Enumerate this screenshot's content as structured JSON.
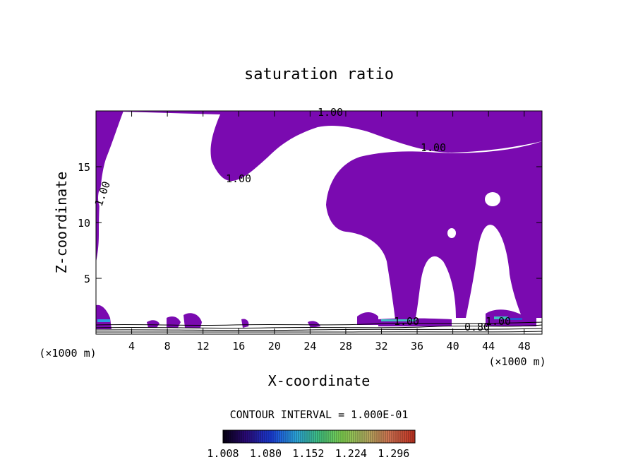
{
  "chart_data": {
    "type": "contour",
    "title": "saturation ratio",
    "xlabel": "X-coordinate",
    "ylabel": "Z-coordinate",
    "x_unit_label": "(×1000 m)",
    "y_unit_label": "(×1000 m)",
    "xlim": [
      0,
      50
    ],
    "ylim": [
      0,
      20
    ],
    "x_ticks": [
      4,
      8,
      12,
      16,
      20,
      24,
      28,
      32,
      36,
      40,
      44,
      48
    ],
    "y_ticks": [
      5,
      10,
      15
    ],
    "contour_interval_text": "CONTOUR INTERVAL = 1.000E-01",
    "contour_labels": [
      "1.00",
      "1.00",
      "1.00",
      "1.00",
      "1.00",
      "0.80",
      "1.00"
    ],
    "colorbar": {
      "tick_labels": [
        "1.008",
        "1.080",
        "1.152",
        "1.224",
        "1.296"
      ],
      "range": [
        1.008,
        1.332
      ],
      "colors": [
        "#000000",
        "#2b0a78",
        "#1a3cd8",
        "#2aa0e0",
        "#40c080",
        "#80d050",
        "#c0b050",
        "#d07050",
        "#d05040",
        "#c03020"
      ]
    },
    "fill_color": "#7a0ab0"
  }
}
